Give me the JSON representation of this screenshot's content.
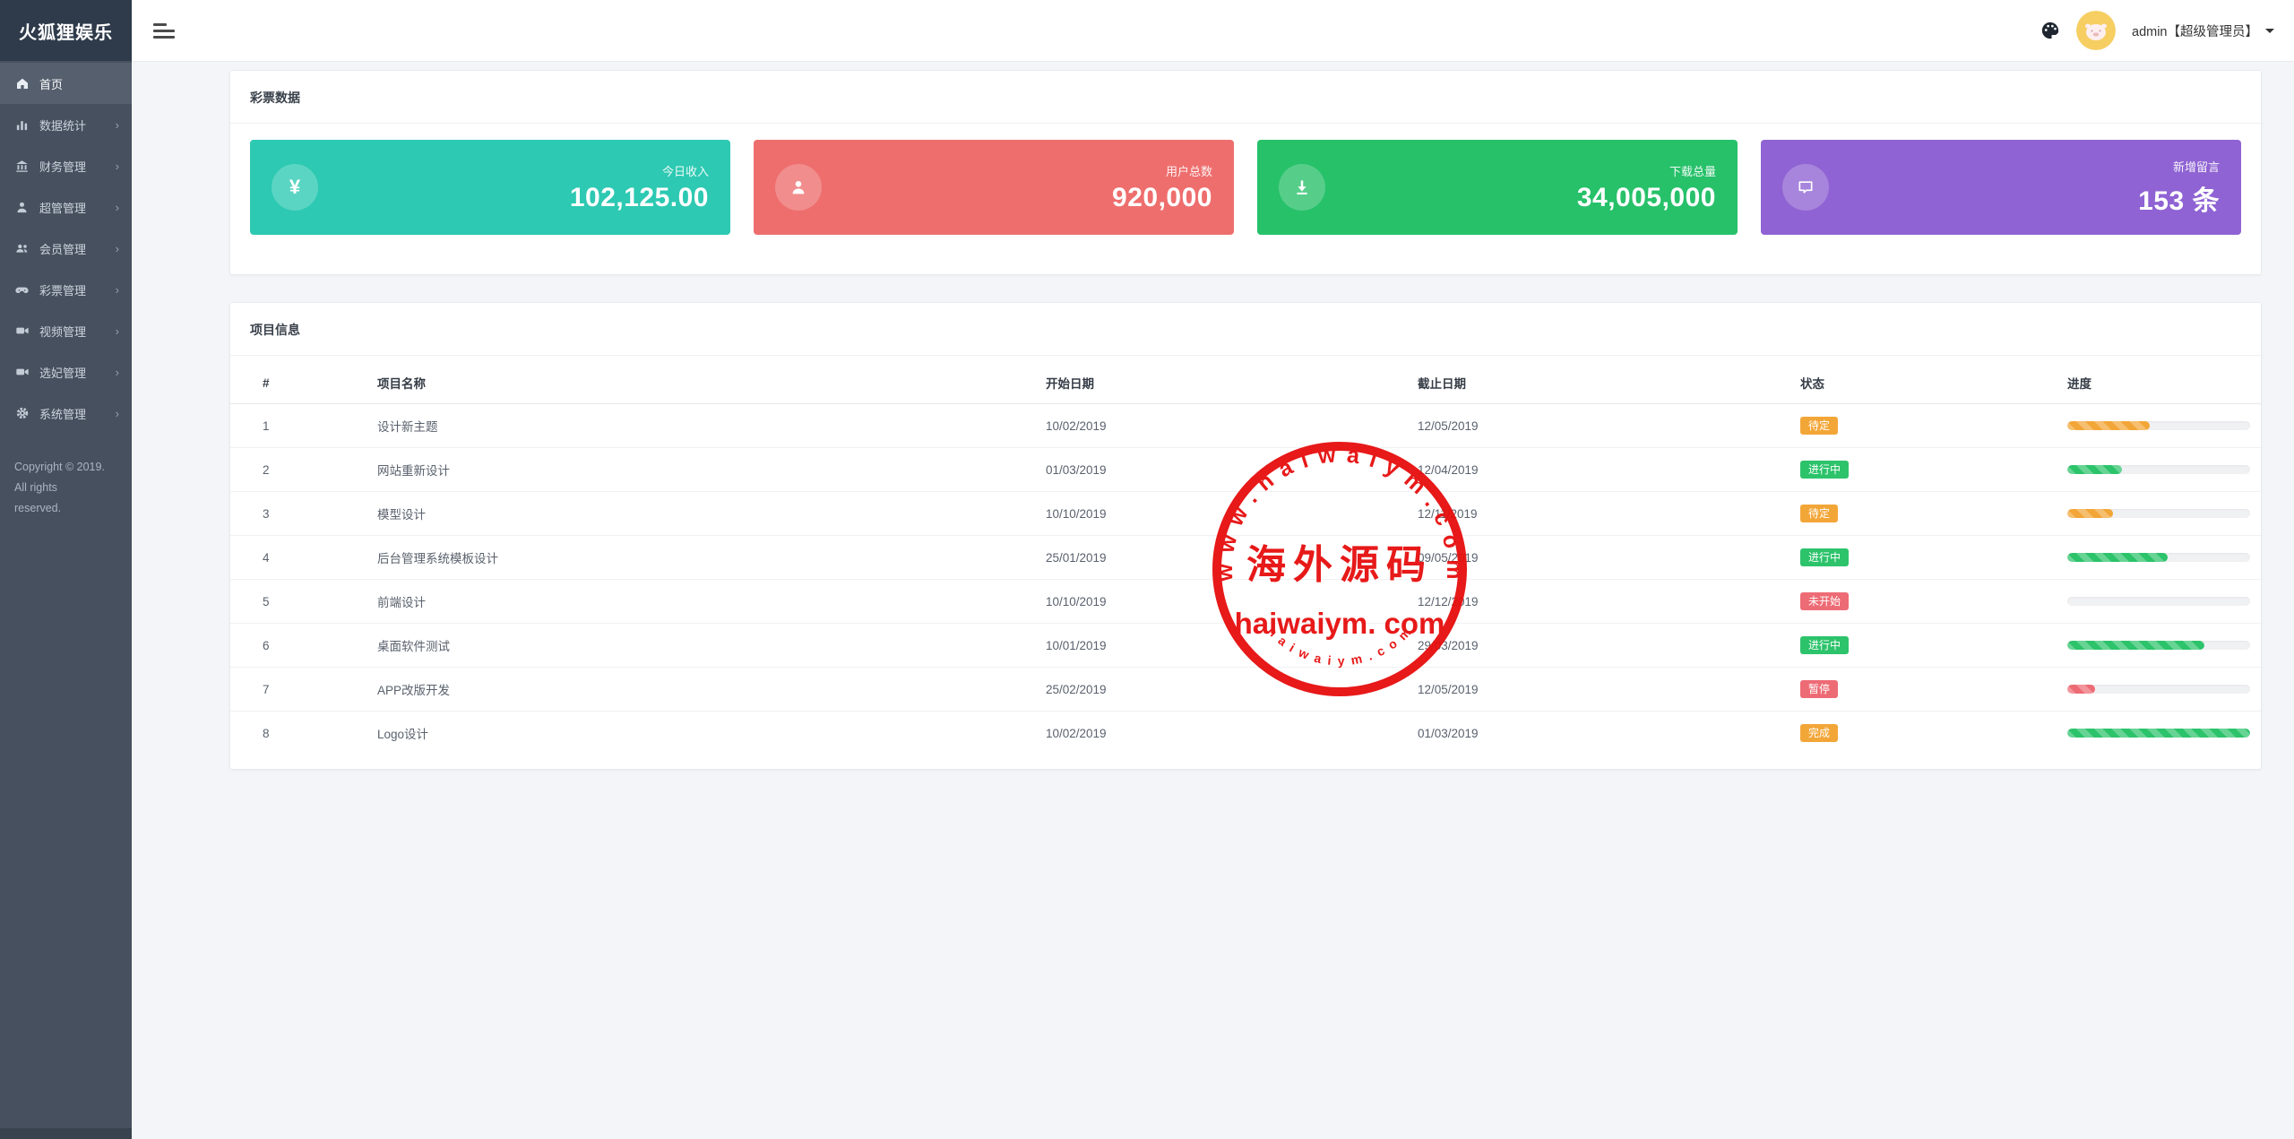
{
  "app_title": "火狐狸娱乐",
  "header": {
    "user_label": "admin【超级管理员】"
  },
  "sidebar": {
    "items": [
      {
        "label": "首页",
        "icon": "home",
        "active": true,
        "has_children": false
      },
      {
        "label": "数据统计",
        "icon": "bar-chart",
        "active": false,
        "has_children": true
      },
      {
        "label": "财务管理",
        "icon": "bank",
        "active": false,
        "has_children": true
      },
      {
        "label": "超管管理",
        "icon": "user",
        "active": false,
        "has_children": true
      },
      {
        "label": "会员管理",
        "icon": "users",
        "active": false,
        "has_children": true
      },
      {
        "label": "彩票管理",
        "icon": "gamepad",
        "active": false,
        "has_children": true
      },
      {
        "label": "视频管理",
        "icon": "video",
        "active": false,
        "has_children": true
      },
      {
        "label": "选妃管理",
        "icon": "video",
        "active": false,
        "has_children": true
      },
      {
        "label": "系统管理",
        "icon": "gear",
        "active": false,
        "has_children": true
      }
    ],
    "chevron": "›",
    "copyright_line1": "Copyright © 2019. All rights",
    "copyright_line2": "reserved."
  },
  "stats": {
    "title": "彩票数据",
    "cards": [
      {
        "label": "今日收入",
        "value": "102,125.00",
        "color": "#2dc9b2",
        "icon": "yen-icon",
        "glyph": "¥"
      },
      {
        "label": "用户总数",
        "value": "920,000",
        "color": "#ee6e6e",
        "icon": "user-icon"
      },
      {
        "label": "下载总量",
        "value": "34,005,000",
        "color": "#27c16a",
        "icon": "download-icon"
      },
      {
        "label": "新增留言",
        "value": "153 条",
        "color": "#8f63d3",
        "icon": "message-icon"
      }
    ]
  },
  "projects": {
    "title": "项目信息",
    "columns": [
      "#",
      "项目名称",
      "开始日期",
      "截止日期",
      "状态",
      "进度"
    ],
    "rows": [
      {
        "num": "1",
        "name": "设计新主题",
        "start": "10/02/2019",
        "end": "12/05/2019",
        "status": {
          "label": "待定",
          "variant": "warning"
        },
        "progress": {
          "percent": 45,
          "variant": "warning"
        }
      },
      {
        "num": "2",
        "name": "网站重新设计",
        "start": "01/03/2019",
        "end": "12/04/2019",
        "status": {
          "label": "进行中",
          "variant": "success"
        },
        "progress": {
          "percent": 30,
          "variant": "success"
        }
      },
      {
        "num": "3",
        "name": "模型设计",
        "start": "10/10/2019",
        "end": "12/11/2019",
        "status": {
          "label": "待定",
          "variant": "warning"
        },
        "progress": {
          "percent": 25,
          "variant": "warning"
        }
      },
      {
        "num": "4",
        "name": "后台管理系统模板设计",
        "start": "25/01/2019",
        "end": "09/05/2019",
        "status": {
          "label": "进行中",
          "variant": "success"
        },
        "progress": {
          "percent": 55,
          "variant": "success"
        }
      },
      {
        "num": "5",
        "name": "前端设计",
        "start": "10/10/2019",
        "end": "12/12/2019",
        "status": {
          "label": "未开始",
          "variant": "danger"
        },
        "progress": {
          "percent": 0,
          "variant": "success"
        }
      },
      {
        "num": "6",
        "name": "桌面软件测试",
        "start": "10/01/2019",
        "end": "29/03/2019",
        "status": {
          "label": "进行中",
          "variant": "success"
        },
        "progress": {
          "percent": 75,
          "variant": "success"
        }
      },
      {
        "num": "7",
        "name": "APP改版开发",
        "start": "25/02/2019",
        "end": "12/05/2019",
        "status": {
          "label": "暂停",
          "variant": "danger"
        },
        "progress": {
          "percent": 15,
          "variant": "danger"
        }
      },
      {
        "num": "8",
        "name": "Logo设计",
        "start": "10/02/2019",
        "end": "01/03/2019",
        "status": {
          "label": "完成",
          "variant": "warning"
        },
        "progress": {
          "percent": 100,
          "variant": "success"
        }
      }
    ]
  },
  "watermark": {
    "arc_top": "w w w . h a i w a i y m . c o m",
    "center": "海外源码",
    "line": "haiwaiym. com",
    "arc_bottom": "h a i w a i y m . c o m",
    "color": "#e60d0d"
  },
  "theme": {
    "sidebar_bg": "#47505f",
    "logo_bg": "#2f3b4a",
    "active_item_bg": "#555f6e",
    "content_bg": "#f3f5f9",
    "badge_warning": "#f3a638",
    "badge_success": "#2cc36b",
    "badge_danger": "#ed6b75"
  }
}
